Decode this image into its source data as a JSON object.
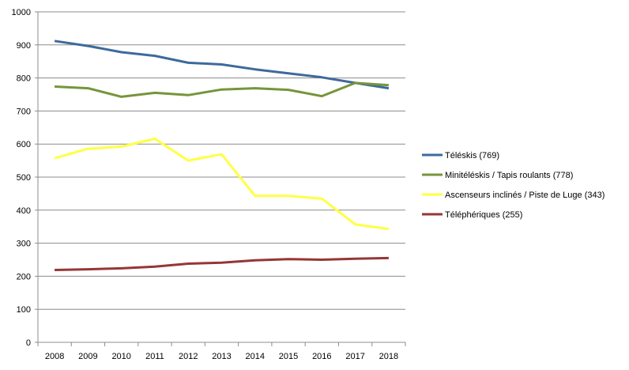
{
  "chart_data": {
    "type": "line",
    "title": "",
    "xlabel": "",
    "ylabel": "",
    "categories": [
      "2008",
      "2009",
      "2010",
      "2011",
      "2012",
      "2013",
      "2014",
      "2015",
      "2016",
      "2017",
      "2018"
    ],
    "ylim": [
      0,
      1000
    ],
    "yticks": [
      0,
      100,
      200,
      300,
      400,
      500,
      600,
      700,
      800,
      900,
      1000
    ],
    "grid": true,
    "legend_position": "right",
    "series": [
      {
        "name": "Téléskis (769)",
        "color": "#3d6a9b",
        "values": [
          912,
          897,
          878,
          867,
          846,
          841,
          826,
          814,
          802,
          785,
          769
        ]
      },
      {
        "name": "Minitéléskis / Tapis roulants (778)",
        "color": "#76953a",
        "values": [
          774,
          769,
          743,
          755,
          748,
          765,
          769,
          764,
          745,
          785,
          778
        ]
      },
      {
        "name": "Ascenseurs inclinés / Piste de Luge (343)",
        "color": "#ffff44",
        "values": [
          557,
          586,
          592,
          616,
          550,
          569,
          443,
          443,
          435,
          357,
          343
        ]
      },
      {
        "name": "Téléphériques (255)",
        "color": "#953735",
        "values": [
          219,
          221,
          224,
          229,
          238,
          241,
          248,
          252,
          250,
          253,
          255
        ]
      }
    ]
  }
}
